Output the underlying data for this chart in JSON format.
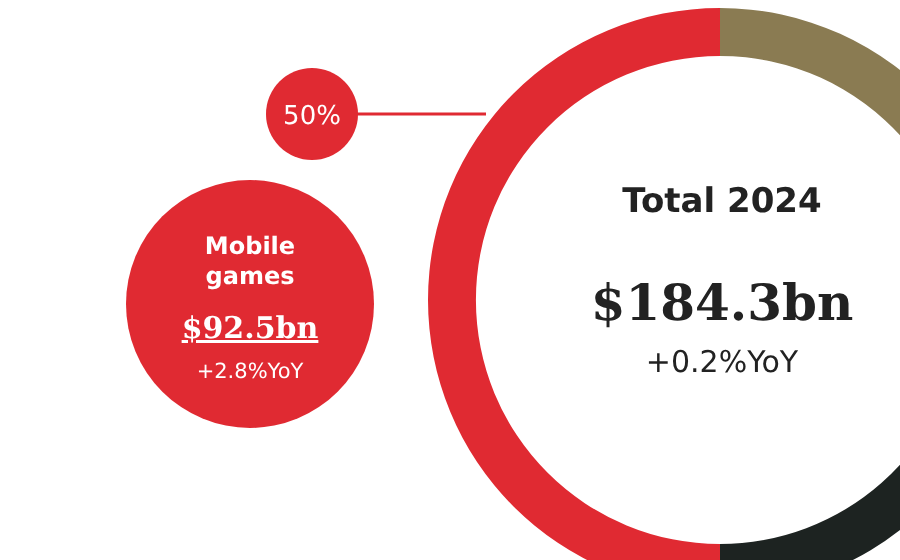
{
  "chart_data": {
    "type": "donut",
    "title": "Total 2024",
    "subtitle": "$184.3bn",
    "categories": [
      "Mobile games",
      null,
      null
    ],
    "values": [
      50,
      23,
      27
    ],
    "colors": [
      "#e02a32",
      "#1d2321",
      "#8a7b52"
    ],
    "value_labels": [
      "50%",
      null,
      null
    ],
    "annotations": [
      "+0.2%YoY",
      "$92.5bn",
      "+2.8%YoY"
    ]
  }
}
